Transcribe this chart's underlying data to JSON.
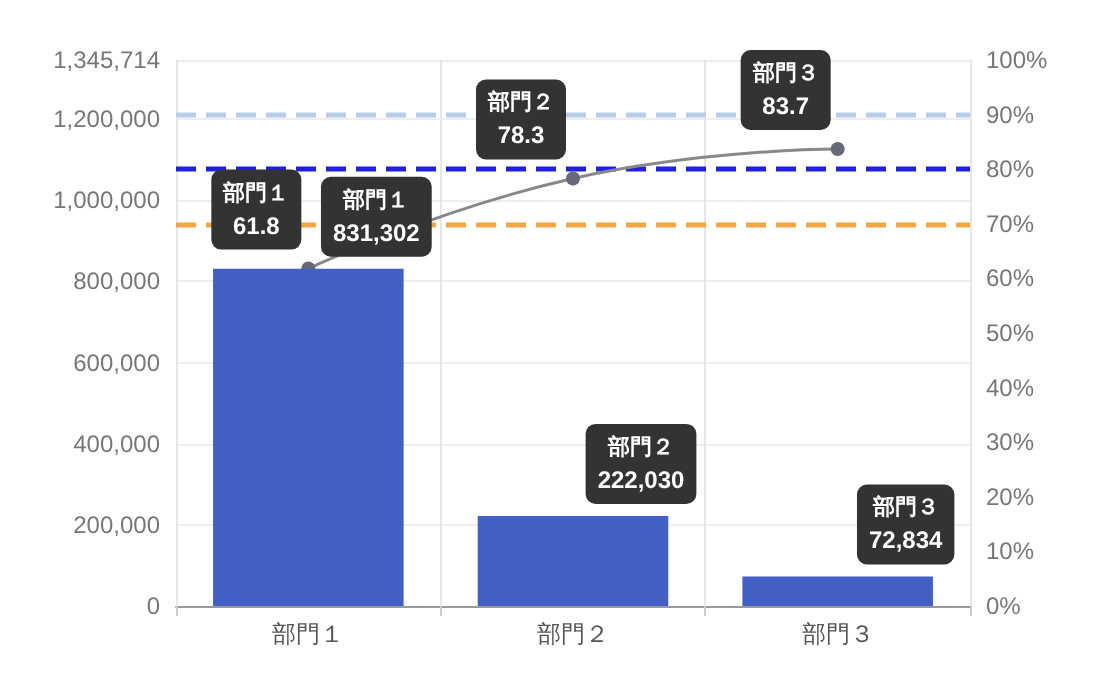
{
  "chart_data": {
    "type": "bar",
    "categories": [
      "部門１",
      "部門２",
      "部門３"
    ],
    "series": [
      {
        "color": "#415fc4",
        "values": [
          831302,
          222030,
          72834
        ],
        "value_labels": [
          "831,302",
          "222,030",
          "72,834"
        ]
      },
      {
        "type": "line",
        "axis": "y2",
        "color": "#888888",
        "values": [
          61.8,
          78.3,
          83.7
        ],
        "value_labels": [
          "61.8",
          "78.3",
          "83.7"
        ]
      }
    ],
    "ylim": [
      0,
      1345714
    ],
    "yticks": [
      {
        "value": 0,
        "label": "0"
      },
      {
        "value": 200000,
        "label": "200,000"
      },
      {
        "value": 400000,
        "label": "400,000"
      },
      {
        "value": 600000,
        "label": "600,000"
      },
      {
        "value": 800000,
        "label": "800,000"
      },
      {
        "value": 1000000,
        "label": "1,000,000"
      },
      {
        "value": 1200000,
        "label": "1,200,000"
      },
      {
        "value": 1345714,
        "label": "1,345,714"
      }
    ],
    "y2lim": [
      0,
      100
    ],
    "y2ticks": [
      {
        "value": 0,
        "label": "0%"
      },
      {
        "value": 10,
        "label": "10%"
      },
      {
        "value": 20,
        "label": "20%"
      },
      {
        "value": 30,
        "label": "30%"
      },
      {
        "value": 40,
        "label": "40%"
      },
      {
        "value": 50,
        "label": "50%"
      },
      {
        "value": 60,
        "label": "60%"
      },
      {
        "value": 70,
        "label": "70%"
      },
      {
        "value": 80,
        "label": "80%"
      },
      {
        "value": 90,
        "label": "90%"
      },
      {
        "value": 100,
        "label": "100%"
      }
    ],
    "ref_lines": [
      {
        "axis": "y2",
        "value": 90,
        "color": "#b8cfea",
        "line_style": "dashed"
      },
      {
        "axis": "y2",
        "value": 80,
        "color": "#1f1fe8",
        "line_style": "dashed"
      },
      {
        "axis": "y2",
        "value": 70,
        "color": "#f5a640",
        "line_style": "dashed"
      }
    ],
    "grid": true,
    "marker": "circle"
  }
}
